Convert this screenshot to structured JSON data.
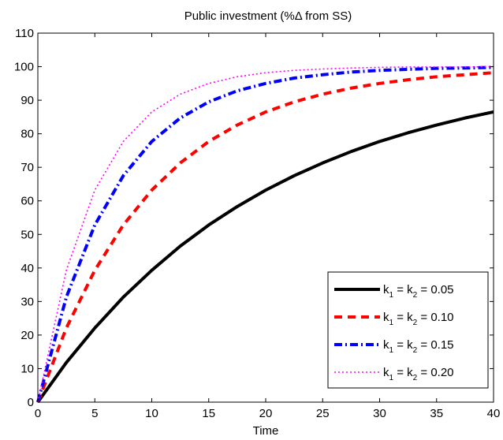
{
  "chart_data": {
    "type": "line",
    "title": "Public investment (%Δ from SS)",
    "xlabel": "Time",
    "ylabel": "",
    "xlim": [
      0,
      40
    ],
    "ylim": [
      0,
      110
    ],
    "xticks": [
      0,
      5,
      10,
      15,
      20,
      25,
      30,
      35,
      40
    ],
    "yticks": [
      0,
      10,
      20,
      30,
      40,
      50,
      60,
      70,
      80,
      90,
      100,
      110
    ],
    "grid": false,
    "legend_position": "bottom-right",
    "x": [
      0,
      2.5,
      5,
      7.5,
      10,
      12.5,
      15,
      17.5,
      20,
      22.5,
      25,
      27.5,
      30,
      32.5,
      35,
      37.5,
      40
    ],
    "series": [
      {
        "name": "k1 = k2 = 0.05",
        "label_parts": {
          "k": "k",
          "sub1": "1",
          "eq": " = ",
          "sub2": "2",
          "val": " = 0.05"
        },
        "color": "#000000",
        "style": "solid",
        "values": [
          0,
          11.8,
          22.1,
          31.3,
          39.3,
          46.5,
          52.8,
          58.3,
          63.2,
          67.5,
          71.3,
          74.7,
          77.7,
          80.3,
          82.6,
          84.7,
          86.5
        ]
      },
      {
        "name": "k1 = k2 = 0.10",
        "label_parts": {
          "k": "k",
          "sub1": "1",
          "eq": " = ",
          "sub2": "2",
          "val": " = 0.10"
        },
        "color": "#ff0000",
        "style": "dashed",
        "values": [
          0,
          22.1,
          39.3,
          52.8,
          63.2,
          71.3,
          77.7,
          82.6,
          86.5,
          89.5,
          91.8,
          93.6,
          95.0,
          96.1,
          97.0,
          97.6,
          98.2
        ]
      },
      {
        "name": "k1 = k2 = 0.15",
        "label_parts": {
          "k": "k",
          "sub1": "1",
          "eq": " = ",
          "sub2": "2",
          "val": " = 0.15"
        },
        "color": "#0000ff",
        "style": "dashdot",
        "values": [
          0,
          31.3,
          52.8,
          67.5,
          77.7,
          84.7,
          89.5,
          92.8,
          95.0,
          96.6,
          97.6,
          98.4,
          98.9,
          99.2,
          99.5,
          99.6,
          99.8
        ]
      },
      {
        "name": "k1 = k2 = 0.20",
        "label_parts": {
          "k": "k",
          "sub1": "1",
          "eq": " = ",
          "sub2": "2",
          "val": " = 0.20"
        },
        "color": "#ff00ff",
        "style": "dotted",
        "values": [
          0,
          39.3,
          63.2,
          77.7,
          86.5,
          91.8,
          95.0,
          97.0,
          98.2,
          98.9,
          99.3,
          99.6,
          99.8,
          99.9,
          99.9,
          99.9,
          100.0
        ]
      }
    ]
  }
}
